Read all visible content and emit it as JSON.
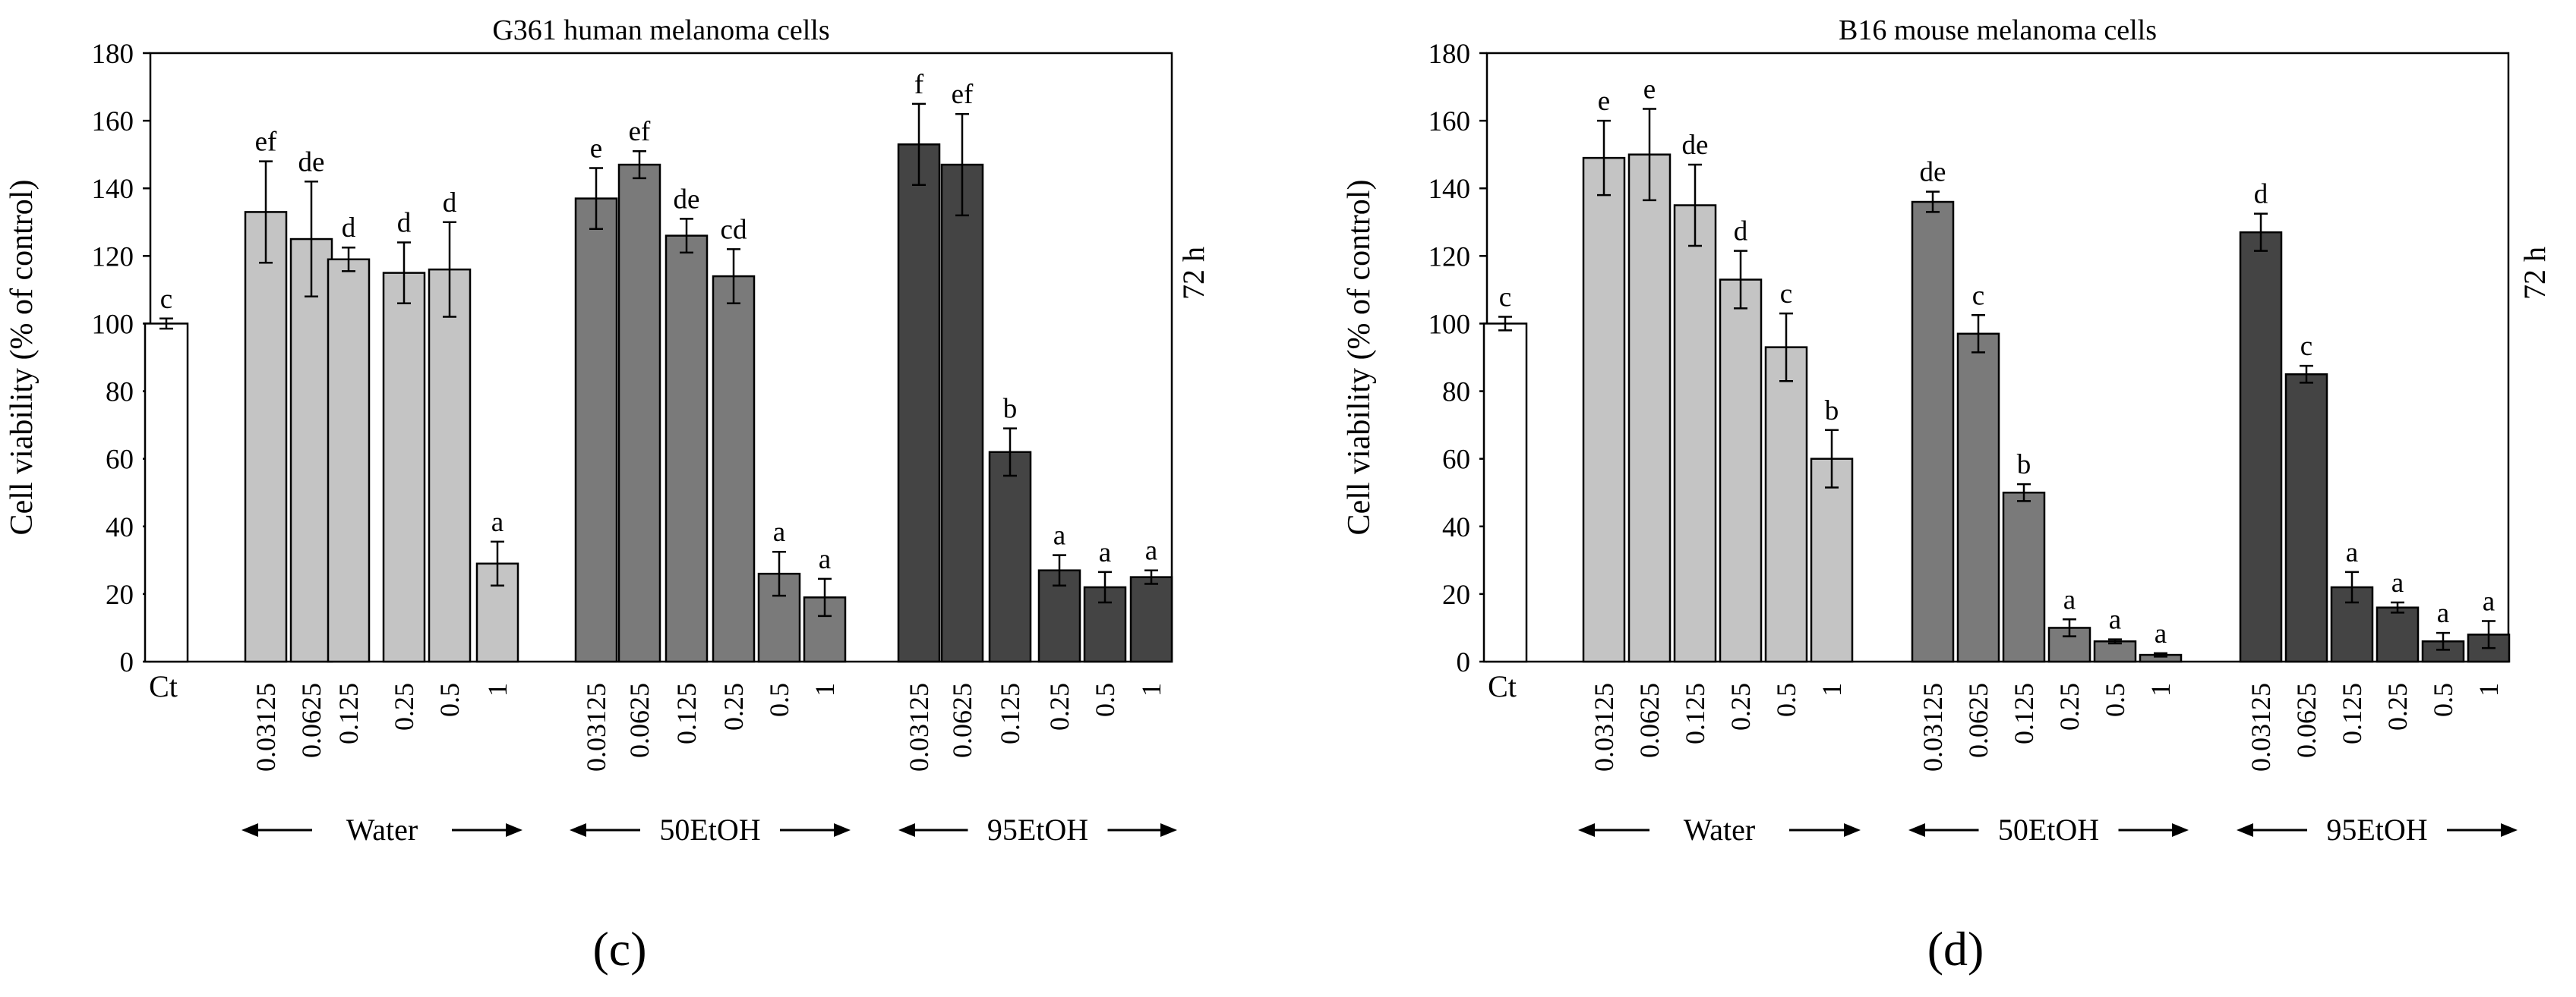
{
  "chart_data": [
    {
      "type": "bar",
      "title": "G361 human melanoma cells",
      "ylabel": "Cell viability (% of control)",
      "side_label": "72 h",
      "panel_label": "(c)",
      "ylim": [
        0,
        180
      ],
      "yticks": [
        0,
        20,
        40,
        60,
        80,
        100,
        120,
        140,
        160,
        180
      ],
      "control": {
        "label": "Ct",
        "value": 100,
        "error": 1.5,
        "letter": "c",
        "color": "#ffffff"
      },
      "groups": [
        {
          "name": "Water",
          "color": "#c4c4c4",
          "categories": [
            "0.03125",
            "0.0625",
            "0.125",
            "0.25",
            "0.5",
            "1"
          ],
          "values": [
            133,
            125,
            119,
            115,
            116,
            29
          ],
          "errors": [
            15,
            17,
            3.5,
            9,
            14,
            6.5
          ],
          "letters": [
            "ef",
            "de",
            "d",
            "d",
            "d",
            "a"
          ]
        },
        {
          "name": "50EtOH",
          "color": "#7a7a7a",
          "categories": [
            "0.03125",
            "0.0625",
            "0.125",
            "0.25",
            "0.5",
            "1"
          ],
          "values": [
            137,
            147,
            126,
            114,
            26,
            19
          ],
          "errors": [
            9,
            4,
            5,
            8,
            6.5,
            5.5
          ],
          "letters": [
            "e",
            "ef",
            "de",
            "cd",
            "a",
            "a"
          ]
        },
        {
          "name": "95EtOH",
          "color": "#444444",
          "categories": [
            "0.03125",
            "0.0625",
            "0.125",
            "0.25",
            "0.5",
            "1"
          ],
          "values": [
            153,
            147,
            62,
            27,
            22,
            25
          ],
          "errors": [
            12,
            15,
            7,
            4.5,
            4.5,
            2
          ],
          "letters": [
            "f",
            "ef",
            "b",
            "a",
            "a",
            "a"
          ]
        }
      ]
    },
    {
      "type": "bar",
      "title": "B16 mouse melanoma cells",
      "ylabel": "Cell viability (% of control)",
      "side_label": "72 h",
      "panel_label": "(d)",
      "ylim": [
        0,
        180
      ],
      "yticks": [
        0,
        20,
        40,
        60,
        80,
        100,
        120,
        140,
        160,
        180
      ],
      "control": {
        "label": "Ct",
        "value": 100,
        "error": 2,
        "letter": "c",
        "color": "#ffffff"
      },
      "groups": [
        {
          "name": "Water",
          "color": "#c4c4c4",
          "categories": [
            "0.03125",
            "0.0625",
            "0.125",
            "0.25",
            "0.5",
            "1"
          ],
          "values": [
            149,
            150,
            135,
            113,
            93,
            60
          ],
          "errors": [
            11,
            13.5,
            12,
            8.5,
            10,
            8.5
          ],
          "letters": [
            "e",
            "e",
            "de",
            "d",
            "c",
            "b"
          ]
        },
        {
          "name": "50EtOH",
          "color": "#7a7a7a",
          "categories": [
            "0.03125",
            "0.0625",
            "0.125",
            "0.25",
            "0.5",
            "1"
          ],
          "values": [
            136,
            97,
            50,
            10,
            6,
            2
          ],
          "errors": [
            3,
            5.5,
            2.5,
            2.5,
            0.6,
            0.5
          ],
          "letters": [
            "de",
            "c",
            "b",
            "a",
            "a",
            "a"
          ]
        },
        {
          "name": "95EtOH",
          "color": "#444444",
          "categories": [
            "0.03125",
            "0.0625",
            "0.125",
            "0.25",
            "0.5",
            "1"
          ],
          "values": [
            127,
            85,
            22,
            16,
            6,
            8
          ],
          "errors": [
            5.5,
            2.5,
            4.5,
            1.5,
            2.5,
            4
          ],
          "letters": [
            "d",
            "c",
            "a",
            "a",
            "a",
            "a"
          ]
        }
      ]
    }
  ]
}
